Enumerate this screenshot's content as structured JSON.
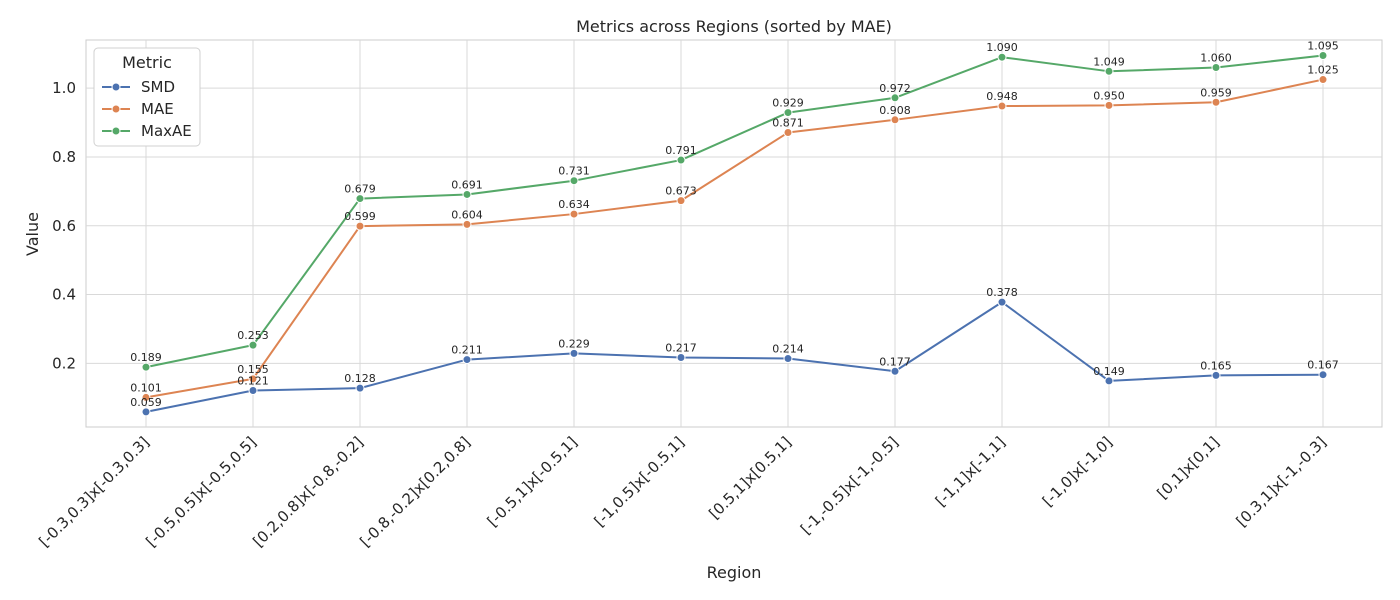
{
  "chart_data": {
    "type": "line",
    "title": "Metrics across Regions (sorted by MAE)",
    "xlabel": "Region",
    "ylabel": "Value",
    "categories": [
      "[-0.3,0.3]x[-0.3,0.3]",
      "[-0.5,0.5]x[-0.5,0.5]",
      "[0.2,0.8]x[-0.8,-0.2]",
      "[-0.8,-0.2]x[0.2,0.8]",
      "[-0.5,1]x[-0.5,1]",
      "[-1,0.5]x[-0.5,1]",
      "[0.5,1]x[0.5,1]",
      "[-1,-0.5]x[-1,-0.5]",
      "[-1,1]x[-1,1]",
      "[-1,0]x[-1,0]",
      "[0,1]x[0,1]",
      "[0.3,1]x[-1,-0.3]"
    ],
    "yticks": [
      "0.2",
      "0.4",
      "0.6",
      "0.8",
      "1.0"
    ],
    "ylim": [
      0.015,
      1.14
    ],
    "grid": true,
    "legend_title": "Metric",
    "legend_position": "top-left",
    "series": [
      {
        "name": "SMD",
        "color": "#4c72b0",
        "values": [
          0.059,
          0.121,
          0.128,
          0.211,
          0.229,
          0.217,
          0.214,
          0.177,
          0.378,
          0.149,
          0.165,
          0.167
        ],
        "labels": [
          "0.059",
          "0.121",
          "0.128",
          "0.211",
          "0.229",
          "0.217",
          "0.214",
          "0.177",
          "0.378",
          "0.149",
          "0.165",
          "0.167"
        ]
      },
      {
        "name": "MAE",
        "color": "#dd8452",
        "values": [
          0.101,
          0.155,
          0.599,
          0.604,
          0.634,
          0.673,
          0.871,
          0.908,
          0.948,
          0.95,
          0.959,
          1.025
        ],
        "labels": [
          "0.101",
          "0.155",
          "0.599",
          "0.604",
          "0.634",
          "0.673",
          "0.871",
          "0.908",
          "0.948",
          "0.950",
          "0.959",
          "1.025"
        ]
      },
      {
        "name": "MaxAE",
        "color": "#55a868",
        "values": [
          0.189,
          0.253,
          0.679,
          0.691,
          0.731,
          0.791,
          0.929,
          0.972,
          1.09,
          1.049,
          1.06,
          1.095
        ],
        "labels": [
          "0.189",
          "0.253",
          "0.679",
          "0.691",
          "0.731",
          "0.791",
          "0.929",
          "0.972",
          "1.090",
          "1.049",
          "1.060",
          "1.095"
        ]
      }
    ]
  }
}
